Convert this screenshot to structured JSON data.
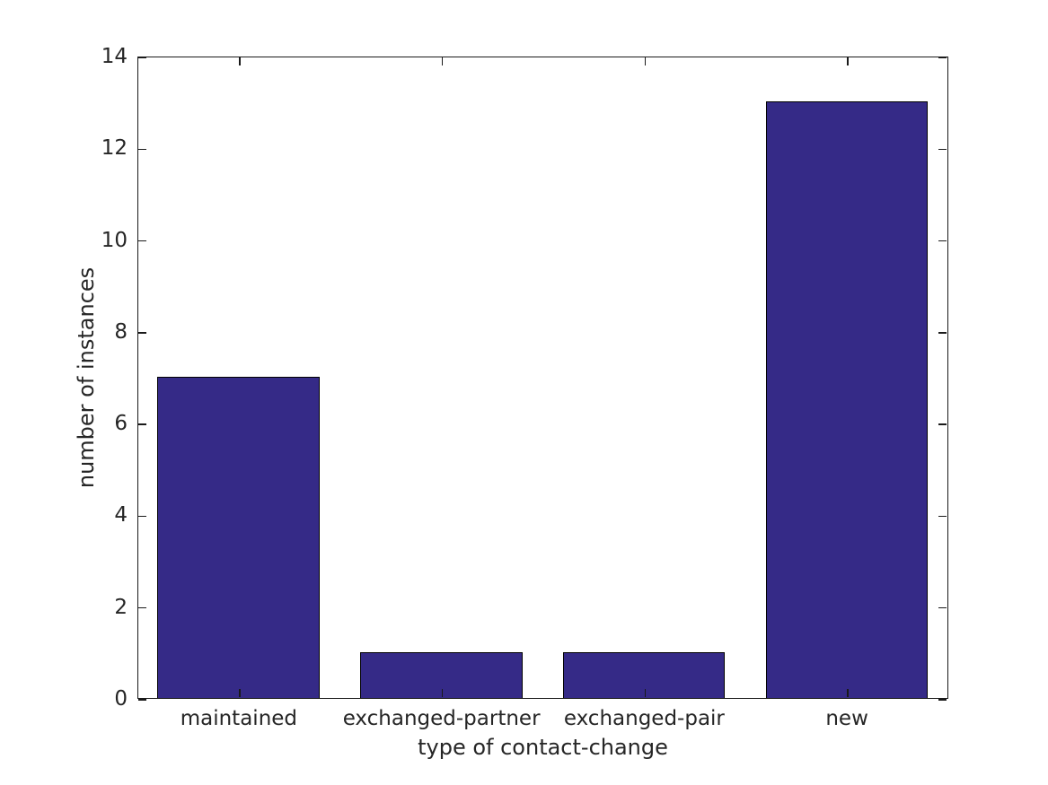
{
  "chart_data": {
    "type": "bar",
    "categories": [
      "maintained",
      "exchanged-partner",
      "exchanged-pair",
      "new"
    ],
    "values": [
      7,
      1,
      1,
      13
    ],
    "xlabel": "type of contact-change",
    "ylabel": "number of instances",
    "ylim": [
      0,
      14
    ],
    "yticks": [
      0,
      2,
      4,
      6,
      8,
      10,
      12,
      14
    ],
    "bar_width_fraction": 0.8,
    "grid": false,
    "legend": null,
    "colors": {
      "bar_fill": "#352a87",
      "bar_edge": "#000000",
      "axis": "#1a1a1a",
      "text": "#262626",
      "background": "#ffffff"
    }
  }
}
